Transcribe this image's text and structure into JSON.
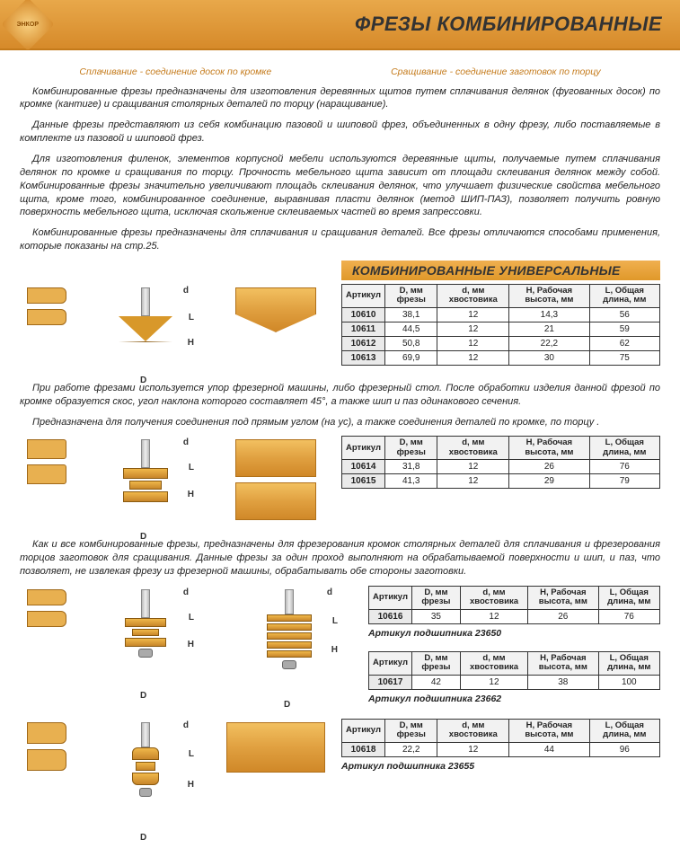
{
  "header": {
    "logo_text": "ЭНКОР",
    "title": "ФРЕЗЫ КОМБИНИРОВАННЫЕ"
  },
  "subheads": {
    "left": "Сплачивание - соединение досок по кромке",
    "right": "Сращивание - соединение заготовок по торцу"
  },
  "paras": {
    "p1": "Комбинированные фрезы предназначены для изготовления деревянных щитов путем сплачивания делянок (фугованных досок) по кромке (кантиге) и сращивания столярных деталей по торцу (наращивание).",
    "p2": "Данные фрезы представляют из себя комбинацию пазовой и шиповой фрез, объединенных в одну фрезу, либо поставляемые в комплекте из пазовой и шиповой фрез.",
    "p3": "Для изготовления филенок, элементов корпусной мебели используются деревянные щиты, получаемые путем сплачивания делянок по кромке и сращивания по торцу. Прочность мебельного щита зависит от площади склеивания делянок между собой. Комбинированные фрезы значительно увеличивают площадь склеивания делянок, что улучшает физические свойства мебельного щита, кроме того, комбинированное соединение, выравнивая пласти делянок (метод ШИП-ПАЗ), позволяет получить ровную поверхность мебельного щита, исключая скольжение склеиваемых частей во время запрессовки.",
    "p4": "Комбинированные фрезы предназначены для сплачивания и сращивания деталей. Все фрезы отличаются способами применения, которые показаны на стр.25."
  },
  "band1": "КОМБИНИРОВАННЫЕ УНИВЕРСАЛЬНЫЕ",
  "columns": {
    "c1": "Артикул",
    "c2": "D, мм фрезы",
    "c3": "d, мм хвостовика",
    "c4": "H, Рабочая высота, мм",
    "c5": "L, Общая длина, мм"
  },
  "table1": [
    {
      "art": "10610",
      "D": "38,1",
      "d": "12",
      "H": "14,3",
      "L": "56"
    },
    {
      "art": "10611",
      "D": "44,5",
      "d": "12",
      "H": "21",
      "L": "59"
    },
    {
      "art": "10612",
      "D": "50,8",
      "d": "12",
      "H": "22,2",
      "L": "62"
    },
    {
      "art": "10613",
      "D": "69,9",
      "d": "12",
      "H": "30",
      "L": "75"
    }
  ],
  "mid1": "При работе фрезами используется упор фрезерной машины, либо фрезерный стол. После обработки изделия данной фрезой по кромке образуется скос, угол наклона которого составляет 45°, а также шип и паз одинакового сечения.",
  "mid1b": "Предназначена для получения соединения под прямым углом (на ус), а также соединения деталей по кромке, по торцу .",
  "table2": [
    {
      "art": "10614",
      "D": "31,8",
      "d": "12",
      "H": "26",
      "L": "76"
    },
    {
      "art": "10615",
      "D": "41,3",
      "d": "12",
      "H": "29",
      "L": "79"
    }
  ],
  "mid2": "Как и все комбинированные фрезы, предназначены для фрезерования кромок столярных деталей для сплачивания и фрезерования торцов заготовок для сращивания. Данные фрезы за один проход выполняют на обрабатываемой поверхности и шип, и паз, что позволяет, не извлекая фрезу из фрезерной машины, обрабатывать обе стороны заготовки.",
  "table3": [
    {
      "art": "10616",
      "D": "35",
      "d": "12",
      "H": "26",
      "L": "76"
    }
  ],
  "bearing3": "Артикул подшипника  23650",
  "table4": [
    {
      "art": "10617",
      "D": "42",
      "d": "12",
      "H": "38",
      "L": "100"
    }
  ],
  "bearing4": "Артикул подшипника  23662",
  "table5": [
    {
      "art": "10618",
      "D": "22,2",
      "d": "12",
      "H": "44",
      "L": "96"
    }
  ],
  "bearing5": "Артикул подшипника  23655",
  "dim_labels": {
    "L": "L",
    "H": "H",
    "D": "D",
    "d": "d"
  },
  "colors": {
    "band_light": "#f0b050",
    "band_dark": "#e0982a",
    "accent": "#c47a1a",
    "wood_light": "#f0c060",
    "wood_dark": "#c8862a"
  }
}
